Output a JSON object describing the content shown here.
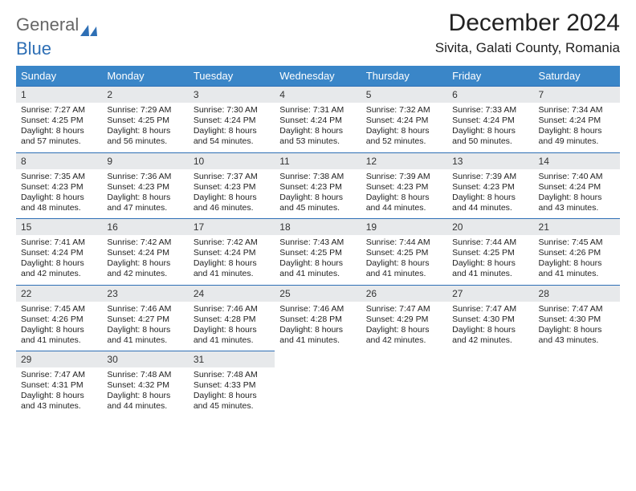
{
  "logo": {
    "part1": "General",
    "part2": "Blue"
  },
  "title": "December 2024",
  "location": "Sivita, Galati County, Romania",
  "colors": {
    "header_bg": "#3a86c8",
    "header_fg": "#ffffff",
    "daynum_bg": "#e7e9eb",
    "daynum_border": "#2e6fb5",
    "logo_general": "#666666",
    "logo_blue": "#2e6fb5"
  },
  "weekdays": [
    "Sunday",
    "Monday",
    "Tuesday",
    "Wednesday",
    "Thursday",
    "Friday",
    "Saturday"
  ],
  "weeks": [
    [
      {
        "n": "1",
        "sr": "Sunrise: 7:27 AM",
        "ss": "Sunset: 4:25 PM",
        "dl": "Daylight: 8 hours and 57 minutes."
      },
      {
        "n": "2",
        "sr": "Sunrise: 7:29 AM",
        "ss": "Sunset: 4:25 PM",
        "dl": "Daylight: 8 hours and 56 minutes."
      },
      {
        "n": "3",
        "sr": "Sunrise: 7:30 AM",
        "ss": "Sunset: 4:24 PM",
        "dl": "Daylight: 8 hours and 54 minutes."
      },
      {
        "n": "4",
        "sr": "Sunrise: 7:31 AM",
        "ss": "Sunset: 4:24 PM",
        "dl": "Daylight: 8 hours and 53 minutes."
      },
      {
        "n": "5",
        "sr": "Sunrise: 7:32 AM",
        "ss": "Sunset: 4:24 PM",
        "dl": "Daylight: 8 hours and 52 minutes."
      },
      {
        "n": "6",
        "sr": "Sunrise: 7:33 AM",
        "ss": "Sunset: 4:24 PM",
        "dl": "Daylight: 8 hours and 50 minutes."
      },
      {
        "n": "7",
        "sr": "Sunrise: 7:34 AM",
        "ss": "Sunset: 4:24 PM",
        "dl": "Daylight: 8 hours and 49 minutes."
      }
    ],
    [
      {
        "n": "8",
        "sr": "Sunrise: 7:35 AM",
        "ss": "Sunset: 4:23 PM",
        "dl": "Daylight: 8 hours and 48 minutes."
      },
      {
        "n": "9",
        "sr": "Sunrise: 7:36 AM",
        "ss": "Sunset: 4:23 PM",
        "dl": "Daylight: 8 hours and 47 minutes."
      },
      {
        "n": "10",
        "sr": "Sunrise: 7:37 AM",
        "ss": "Sunset: 4:23 PM",
        "dl": "Daylight: 8 hours and 46 minutes."
      },
      {
        "n": "11",
        "sr": "Sunrise: 7:38 AM",
        "ss": "Sunset: 4:23 PM",
        "dl": "Daylight: 8 hours and 45 minutes."
      },
      {
        "n": "12",
        "sr": "Sunrise: 7:39 AM",
        "ss": "Sunset: 4:23 PM",
        "dl": "Daylight: 8 hours and 44 minutes."
      },
      {
        "n": "13",
        "sr": "Sunrise: 7:39 AM",
        "ss": "Sunset: 4:23 PM",
        "dl": "Daylight: 8 hours and 44 minutes."
      },
      {
        "n": "14",
        "sr": "Sunrise: 7:40 AM",
        "ss": "Sunset: 4:24 PM",
        "dl": "Daylight: 8 hours and 43 minutes."
      }
    ],
    [
      {
        "n": "15",
        "sr": "Sunrise: 7:41 AM",
        "ss": "Sunset: 4:24 PM",
        "dl": "Daylight: 8 hours and 42 minutes."
      },
      {
        "n": "16",
        "sr": "Sunrise: 7:42 AM",
        "ss": "Sunset: 4:24 PM",
        "dl": "Daylight: 8 hours and 42 minutes."
      },
      {
        "n": "17",
        "sr": "Sunrise: 7:42 AM",
        "ss": "Sunset: 4:24 PM",
        "dl": "Daylight: 8 hours and 41 minutes."
      },
      {
        "n": "18",
        "sr": "Sunrise: 7:43 AM",
        "ss": "Sunset: 4:25 PM",
        "dl": "Daylight: 8 hours and 41 minutes."
      },
      {
        "n": "19",
        "sr": "Sunrise: 7:44 AM",
        "ss": "Sunset: 4:25 PM",
        "dl": "Daylight: 8 hours and 41 minutes."
      },
      {
        "n": "20",
        "sr": "Sunrise: 7:44 AM",
        "ss": "Sunset: 4:25 PM",
        "dl": "Daylight: 8 hours and 41 minutes."
      },
      {
        "n": "21",
        "sr": "Sunrise: 7:45 AM",
        "ss": "Sunset: 4:26 PM",
        "dl": "Daylight: 8 hours and 41 minutes."
      }
    ],
    [
      {
        "n": "22",
        "sr": "Sunrise: 7:45 AM",
        "ss": "Sunset: 4:26 PM",
        "dl": "Daylight: 8 hours and 41 minutes."
      },
      {
        "n": "23",
        "sr": "Sunrise: 7:46 AM",
        "ss": "Sunset: 4:27 PM",
        "dl": "Daylight: 8 hours and 41 minutes."
      },
      {
        "n": "24",
        "sr": "Sunrise: 7:46 AM",
        "ss": "Sunset: 4:28 PM",
        "dl": "Daylight: 8 hours and 41 minutes."
      },
      {
        "n": "25",
        "sr": "Sunrise: 7:46 AM",
        "ss": "Sunset: 4:28 PM",
        "dl": "Daylight: 8 hours and 41 minutes."
      },
      {
        "n": "26",
        "sr": "Sunrise: 7:47 AM",
        "ss": "Sunset: 4:29 PM",
        "dl": "Daylight: 8 hours and 42 minutes."
      },
      {
        "n": "27",
        "sr": "Sunrise: 7:47 AM",
        "ss": "Sunset: 4:30 PM",
        "dl": "Daylight: 8 hours and 42 minutes."
      },
      {
        "n": "28",
        "sr": "Sunrise: 7:47 AM",
        "ss": "Sunset: 4:30 PM",
        "dl": "Daylight: 8 hours and 43 minutes."
      }
    ],
    [
      {
        "n": "29",
        "sr": "Sunrise: 7:47 AM",
        "ss": "Sunset: 4:31 PM",
        "dl": "Daylight: 8 hours and 43 minutes."
      },
      {
        "n": "30",
        "sr": "Sunrise: 7:48 AM",
        "ss": "Sunset: 4:32 PM",
        "dl": "Daylight: 8 hours and 44 minutes."
      },
      {
        "n": "31",
        "sr": "Sunrise: 7:48 AM",
        "ss": "Sunset: 4:33 PM",
        "dl": "Daylight: 8 hours and 45 minutes."
      },
      null,
      null,
      null,
      null
    ]
  ]
}
